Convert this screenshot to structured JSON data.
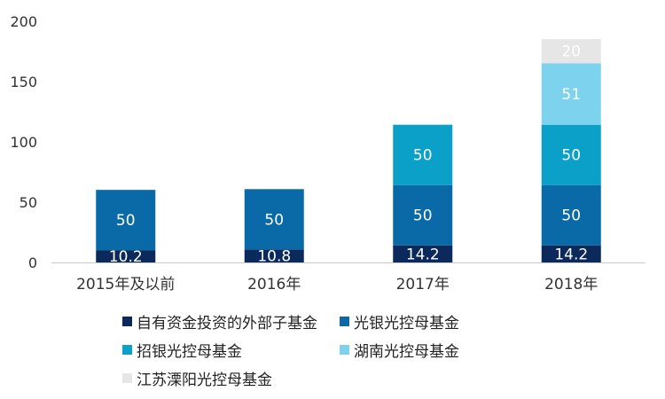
{
  "chart_data": {
    "type": "bar",
    "stacked": true,
    "categories": [
      "2015年及以前",
      "2016年",
      "2017年",
      "2018年"
    ],
    "series": [
      {
        "name": "自有资金投资的外部子基金",
        "color": "#0b2a5b",
        "label_color": "#ffffff",
        "values": [
          10.2,
          10.8,
          14.2,
          14.2
        ],
        "labels": [
          "10.2",
          "10.8",
          "14.2",
          "14.2"
        ]
      },
      {
        "name": "光银光控母基金",
        "color": "#0a6aa8",
        "label_color": "#ffffff",
        "values": [
          50,
          50,
          50,
          50
        ],
        "labels": [
          "50",
          "50",
          "50",
          "50"
        ]
      },
      {
        "name": "招银光控母基金",
        "color": "#0aa0c8",
        "label_color": "#ffffff",
        "values": [
          0,
          0,
          50,
          50
        ],
        "labels": [
          "",
          "",
          "50",
          "50"
        ]
      },
      {
        "name": "湖南光控母基金",
        "color": "#7dd3ee",
        "label_color": "#ffffff",
        "values": [
          0,
          0,
          0,
          51
        ],
        "labels": [
          "",
          "",
          "",
          "51"
        ]
      },
      {
        "name": "江苏溧阳光控母基金",
        "color": "#e6e6e6",
        "label_color": "#ffffff",
        "values": [
          0,
          0,
          0,
          20
        ],
        "labels": [
          "",
          "",
          "",
          "20"
        ]
      }
    ],
    "y_ticks": [
      "0",
      "50",
      "100",
      "150",
      "200"
    ],
    "ylim": [
      0,
      200
    ],
    "grid": false,
    "legend_position": "bottom"
  }
}
